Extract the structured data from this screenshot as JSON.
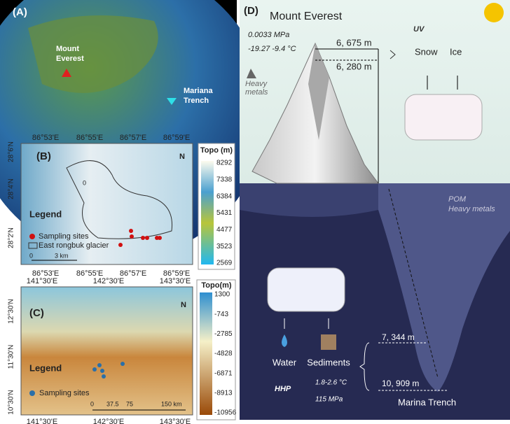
{
  "panel_a": {
    "label": "(A)",
    "everest": [
      "Mount",
      "Everest"
    ],
    "trench": [
      "Mariana",
      "Trench"
    ]
  },
  "panel_b": {
    "label": "(B)",
    "x_ticks": [
      "86°53'E",
      "86°55'E",
      "86°57'E",
      "86°59'E"
    ],
    "y_ticks": [
      "28°6'N",
      "28°4'N",
      "28°2'N"
    ],
    "north": "N",
    "contour_label": "0",
    "legend_title": "Legend",
    "legend": [
      "Sampling sites",
      "East rongbuk glacier"
    ],
    "scale": [
      "0",
      "3 km"
    ],
    "colorbar": {
      "title": "Topo (m)",
      "ticks": [
        "8292",
        "7338",
        "6384",
        "5431",
        "4477",
        "3523",
        "2569"
      ]
    }
  },
  "panel_c": {
    "label": "(C)",
    "x_ticks": [
      "141°30'E",
      "142°30'E",
      "143°30'E"
    ],
    "y_ticks": [
      "12°30'N",
      "11°30'N",
      "10°30'N"
    ],
    "north": "N",
    "legend_title": "Legend",
    "legend": [
      "Sampling sites"
    ],
    "scale": [
      "0",
      "37.5",
      "75",
      "150 km"
    ],
    "colorbar": {
      "title": "Topo(m)",
      "ticks": [
        "1300",
        "-743",
        "-2785",
        "-4828",
        "-6871",
        "-8913",
        "-10956"
      ]
    }
  },
  "panel_d": {
    "label": "(D)",
    "mountain": "Mount Everest",
    "pressure": "0.0033 MPa",
    "temperature": "-19.27 -9.4 °C",
    "height_top": "6, 675 m",
    "height_low": "6, 280 m",
    "heavy_metals": [
      "Heavy",
      "metals"
    ],
    "uv": "UV",
    "snow": "Snow",
    "ice": "Ice",
    "pom": "POM",
    "ocean_metals": "Heavy metals",
    "water": "Water",
    "sediments": "Sediments",
    "hhp": "HHP",
    "deep_temperature": "1.8-2.6 °C",
    "deep_pressure": "115 MPa",
    "depth_top": "7, 344  m",
    "depth_bottom": "10, 909 m",
    "trench": "Marina Trench"
  }
}
